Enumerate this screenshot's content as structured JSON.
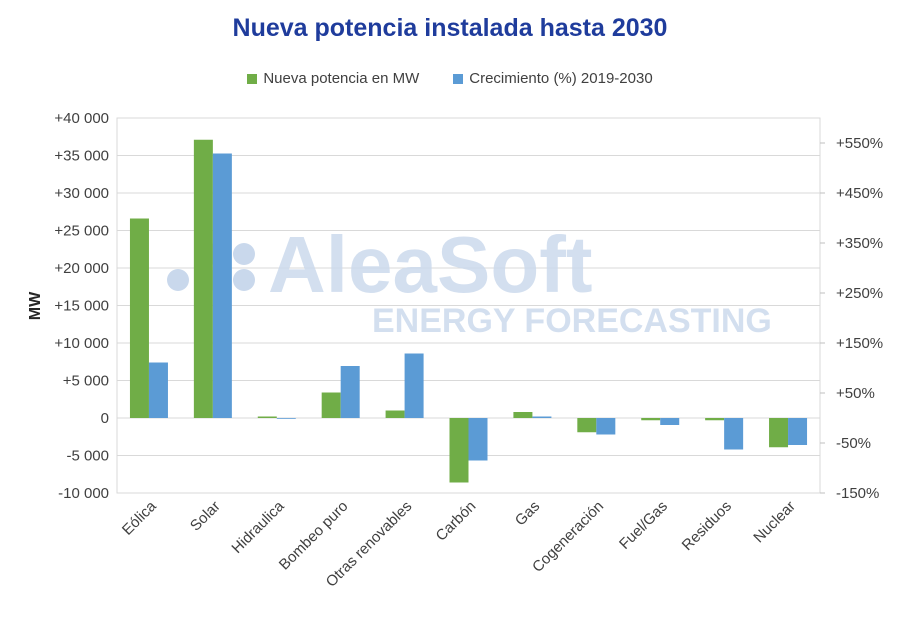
{
  "chart_data": {
    "type": "bar",
    "title": "Nueva potencia instalada hasta 2030",
    "ylabel": "MW",
    "categories": [
      "Eólica",
      "Solar",
      "Hidraulica",
      "Bombeo puro",
      "Otras renovables",
      "Carbón",
      "Gas",
      "Cogeneración",
      "Fuel/Gas",
      "Residuos",
      "Nuclear"
    ],
    "series": [
      {
        "name": "Nueva potencia en MW",
        "axis": "left",
        "color": "#70ad47",
        "values": [
          26600,
          37100,
          200,
          3400,
          1000,
          -8600,
          800,
          -1900,
          -300,
          -300,
          -3900
        ]
      },
      {
        "name": "Crecimiento (%) 2019-2030",
        "axis": "right",
        "color": "#5b9bd5",
        "values": [
          111,
          529,
          0,
          104,
          129,
          -85,
          3,
          -33,
          -14,
          -63,
          -54
        ]
      }
    ],
    "left_axis": {
      "ylim": [
        -10000,
        40000
      ],
      "ticks": [
        40000,
        35000,
        30000,
        25000,
        20000,
        15000,
        10000,
        5000,
        0,
        -5000,
        -10000
      ],
      "tick_labels": [
        "+40 000",
        "+35 000",
        "+30 000",
        "+25 000",
        "+20 000",
        "+15 000",
        "+10 000",
        "+5 000",
        "0",
        "-5 000",
        "-10 000"
      ]
    },
    "right_axis": {
      "ylim": [
        -150,
        600
      ],
      "ticks": [
        550,
        450,
        350,
        250,
        150,
        50,
        -50,
        -150
      ],
      "tick_labels": [
        "+550%",
        "+450%",
        "+350%",
        "+250%",
        "+150%",
        "+50%",
        "-50%",
        "-150%"
      ]
    },
    "grid": true,
    "legend": "top"
  },
  "watermark": {
    "brand": "AleaSoft",
    "tagline": "ENERGY FORECASTING"
  }
}
